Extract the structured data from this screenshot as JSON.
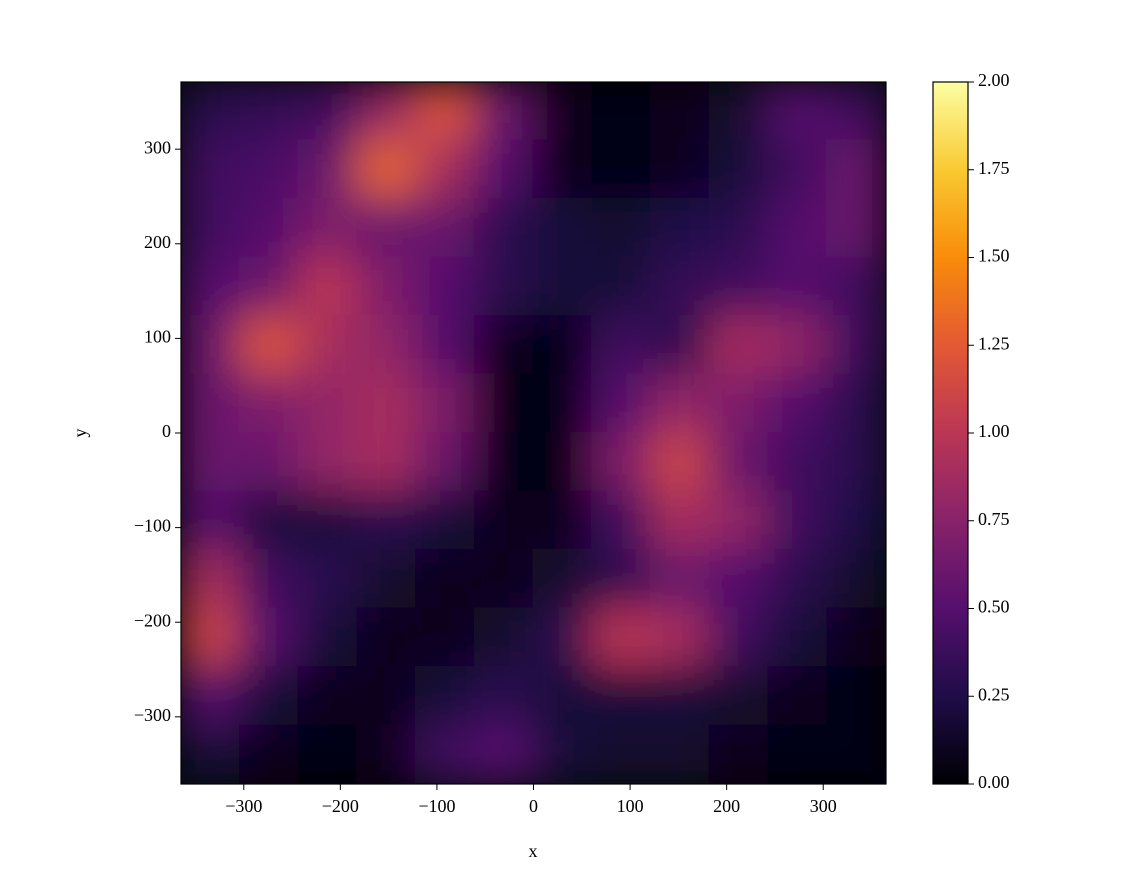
{
  "chart_data": {
    "type": "heatmap",
    "colormap": "inferno",
    "xlabel": "x",
    "ylabel": "y",
    "xlim": [
      -365,
      365
    ],
    "ylim": [
      -371,
      371
    ],
    "xticks": [
      {
        "value": -300,
        "label": "−300"
      },
      {
        "value": -200,
        "label": "−200"
      },
      {
        "value": -100,
        "label": "−100"
      },
      0,
      100,
      200,
      300
    ],
    "yticks": [
      {
        "value": -300,
        "label": "−300"
      },
      {
        "value": -200,
        "label": "−200"
      },
      {
        "value": -100,
        "label": "−100"
      },
      0,
      100,
      200,
      300
    ],
    "clim": [
      0,
      2
    ],
    "cticks": [
      {
        "value": 0,
        "label": "0.00"
      },
      {
        "value": 0.25,
        "label": "0.25"
      },
      {
        "value": 0.5,
        "label": "0.50"
      },
      {
        "value": 0.75,
        "label": "0.75"
      },
      {
        "value": 1,
        "label": "1.00"
      },
      {
        "value": 1.25,
        "label": "1.25"
      },
      {
        "value": 1.5,
        "label": "1.50"
      },
      {
        "value": 1.75,
        "label": "1.75"
      },
      {
        "value": 2,
        "label": "2.00"
      }
    ],
    "z": [
      [
        0.3,
        0.35,
        0.4,
        0.8,
        1.2,
        0.6,
        0.1,
        0.05,
        0.1,
        0.15,
        0.5,
        0.4
      ],
      [
        0.4,
        0.45,
        0.6,
        1.3,
        0.9,
        0.5,
        0.1,
        0.05,
        0.1,
        0.2,
        0.4,
        0.6
      ],
      [
        0.4,
        0.5,
        0.7,
        0.6,
        0.6,
        0.3,
        0.2,
        0.15,
        0.25,
        0.3,
        0.5,
        0.6
      ],
      [
        0.5,
        0.6,
        1.0,
        0.7,
        0.5,
        0.3,
        0.2,
        0.2,
        0.35,
        0.4,
        0.5,
        0.4
      ],
      [
        0.6,
        1.2,
        0.9,
        0.8,
        0.5,
        0.1,
        0.05,
        0.4,
        0.3,
        0.9,
        0.8,
        0.4
      ],
      [
        0.6,
        0.7,
        0.8,
        0.9,
        0.7,
        0.05,
        0.05,
        0.5,
        0.8,
        0.7,
        0.5,
        0.3
      ],
      [
        0.6,
        0.6,
        0.8,
        0.9,
        0.6,
        0.05,
        0.05,
        0.7,
        1.1,
        0.6,
        0.4,
        0.3
      ],
      [
        0.5,
        0.2,
        0.2,
        0.3,
        0.2,
        0.1,
        0.1,
        0.4,
        0.9,
        0.8,
        0.4,
        0.25
      ],
      [
        0.9,
        0.4,
        0.3,
        0.15,
        0.1,
        0.1,
        0.15,
        0.3,
        0.6,
        0.5,
        0.3,
        0.15
      ],
      [
        1.1,
        0.5,
        0.2,
        0.1,
        0.1,
        0.15,
        0.3,
        1.0,
        0.9,
        0.4,
        0.2,
        0.1
      ],
      [
        0.5,
        0.2,
        0.1,
        0.1,
        0.2,
        0.3,
        0.2,
        0.2,
        0.2,
        0.15,
        0.1,
        0.05
      ],
      [
        0.2,
        0.1,
        0.05,
        0.1,
        0.4,
        0.5,
        0.2,
        0.15,
        0.15,
        0.1,
        0.05,
        0.05
      ]
    ]
  }
}
